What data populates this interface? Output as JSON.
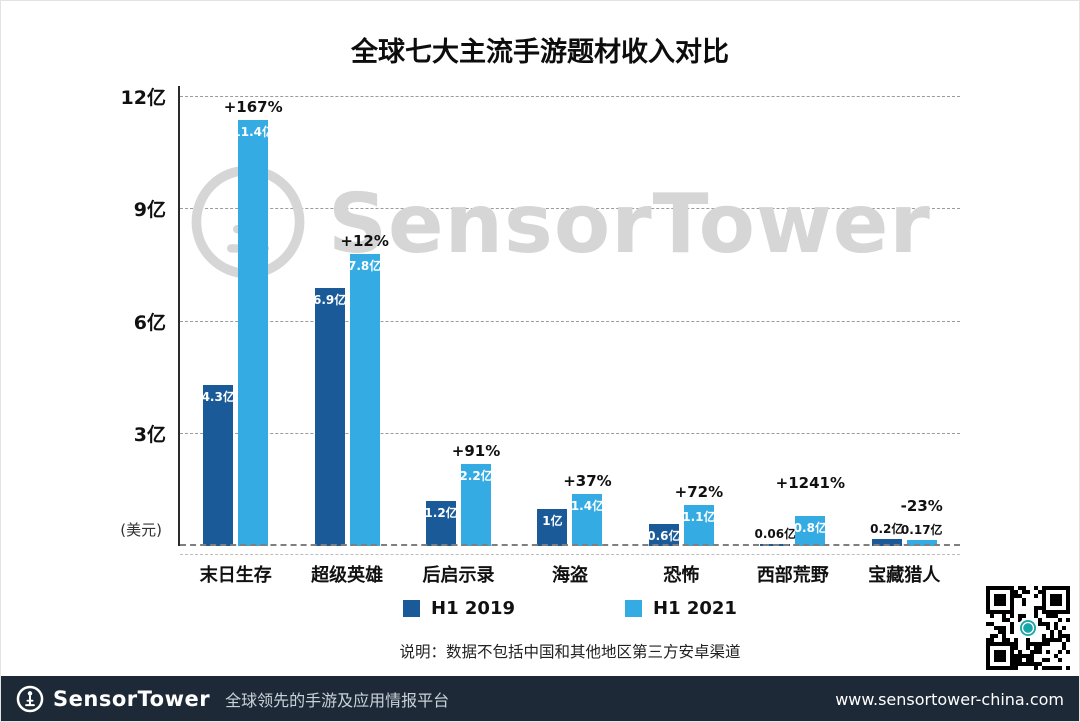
{
  "title": "全球七大主流手游题材收入对比",
  "watermark_text": "SensorTower",
  "chart_data": {
    "type": "bar",
    "title": "全球七大主流手游题材收入对比",
    "unit_label": "(美元)",
    "categories": [
      "末日生存",
      "超级英雄",
      "后启示录",
      "海盗",
      "恐怖",
      "西部荒野",
      "宝藏猎人"
    ],
    "series": [
      {
        "name": "H1 2019",
        "color": "#1a5a98",
        "values": [
          4.3,
          6.9,
          1.2,
          1,
          0.6,
          0.06,
          0.2
        ],
        "value_labels": [
          "4.3亿",
          "6.9亿",
          "1.2亿",
          "1亿",
          "0.6亿",
          "0.06亿",
          "0.2亿"
        ]
      },
      {
        "name": "H1 2021",
        "color": "#35abe4",
        "values": [
          11.4,
          7.8,
          2.2,
          1.4,
          1.1,
          0.8,
          0.17
        ],
        "value_labels": [
          "11.4亿",
          "7.8亿",
          "2.2亿",
          "1.4亿",
          "1.1亿",
          "0.8亿",
          "0.17亿"
        ]
      }
    ],
    "growth_labels": [
      "+167%",
      "+12%",
      "+91%",
      "+37%",
      "+72%",
      "+1241%",
      "-23%"
    ],
    "y_ticks": [
      {
        "value": 12,
        "label": "12亿"
      },
      {
        "value": 9,
        "label": "9亿"
      },
      {
        "value": 6,
        "label": "6亿"
      },
      {
        "value": 3,
        "label": "3亿"
      }
    ],
    "ylim": [
      0,
      12.3
    ],
    "grid": "horizontal-dashed",
    "legend_position": "bottom"
  },
  "note": "说明：数据不包括中国和其他地区第三方安卓渠道",
  "footer": {
    "brand": "SensorTower",
    "tagline": "全球领先的手游及应用情报平台",
    "url": "www.sensortower-china.com"
  },
  "colors": {
    "bar_2019": "#1a5a98",
    "bar_2021": "#35abe4",
    "footer_bg": "#1d2936",
    "watermark": "#d6d6d6",
    "qr_logo": "#1aa5a8"
  }
}
